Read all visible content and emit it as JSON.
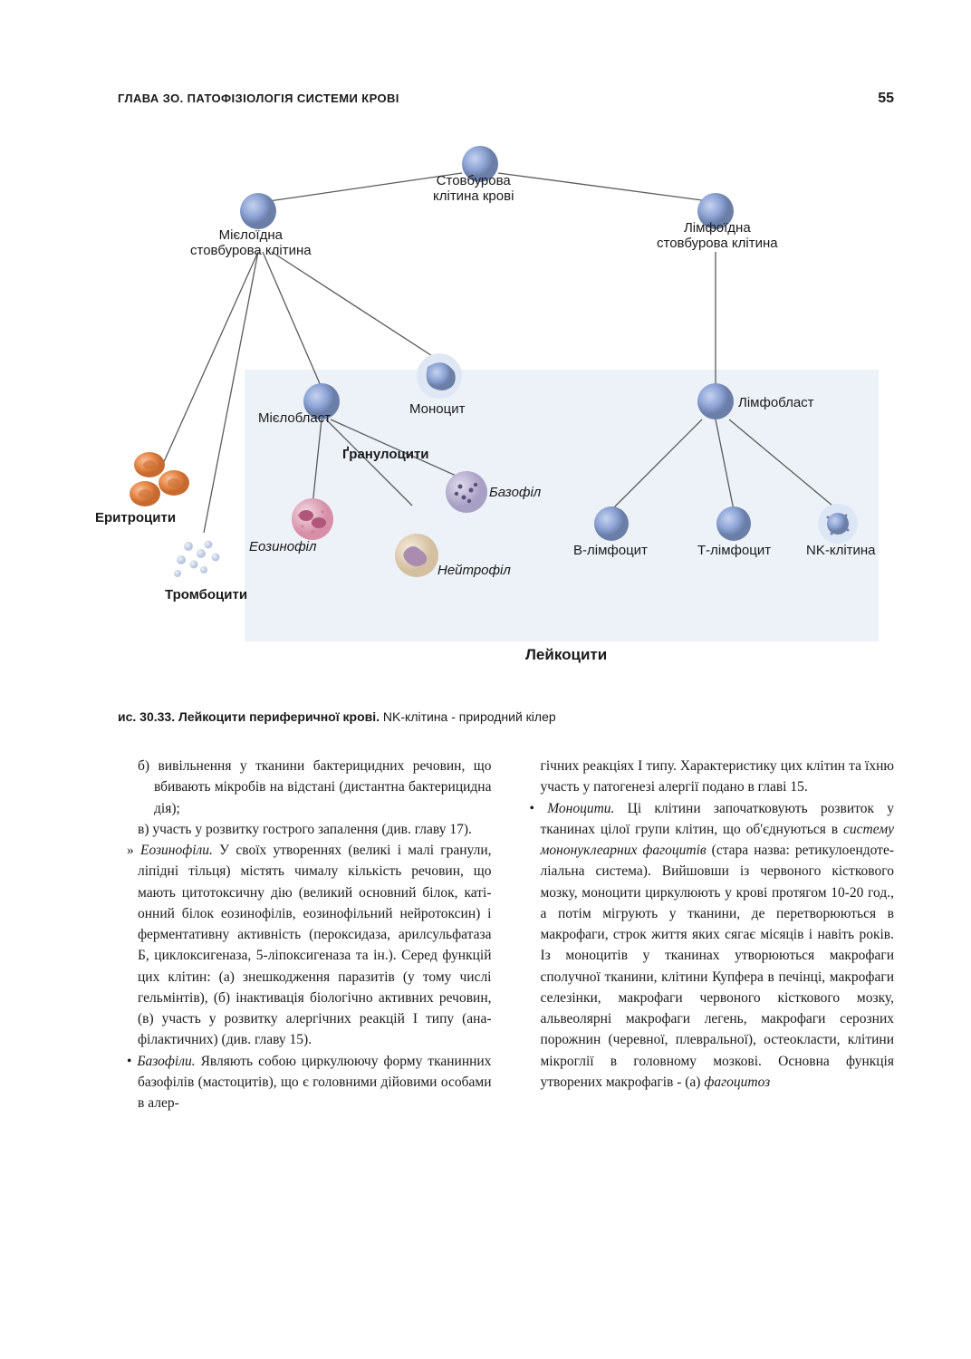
{
  "header": {
    "chapter_title": "ГЛАВА ЗО. ПАТОФІЗІОЛОГІЯ СИСТЕМИ КРОВІ",
    "page_number": "55"
  },
  "diagram": {
    "labels": {
      "stem_cell": "Стовбурова\nклітина крові",
      "myeloid_stem": "Мієлоїдна\nстовбурова клітина",
      "lymphoid_stem": "Лімфоїдна\nстовбурова клітина",
      "monocyte": "Моноцит",
      "myeloblast": "Мієлобласт",
      "lymphoblast": "Лімфобласт",
      "granulocytes": "Ґранулоцити",
      "basophil": "Базофіл",
      "eosinophil": "Еозинофіл",
      "neutrophil": "Нейтрофіл",
      "erythrocytes": "Еритроцити",
      "thrombocytes": "Тромбоцити",
      "b_lymphocyte": "В-лімфоцит",
      "t_lymphocyte": "Т-лімфоцит",
      "nk_cell": "NK-клітина",
      "leukocytes": "Лейкоцити"
    },
    "colors": {
      "cell_blue": "#8fa5d6",
      "cell_blue_dark": "#6b7ea8",
      "cell_orange": "#e88a4d",
      "cell_orange_dark": "#c66a30",
      "cell_platelet": "#c9d4e8",
      "cell_eos": "#e6b4c4",
      "cell_neut": "#e8d8c4",
      "cell_baso": "#c4c0d8",
      "line": "#5a5a5a",
      "bg_box": "#eef2f8",
      "text": "#1a1a1a"
    }
  },
  "caption": {
    "fig_num": "ис. 30.33. ",
    "fig_title": "Лейкоцити периферичної крові. ",
    "fig_note": "NK-клітина - природний кілер"
  },
  "body": {
    "left": [
      {
        "cls": "indent-b",
        "html": "б) вивільнення у тканини бактерицидних речовин, що вбивають мікробів на від­стані (дистантна бактерицидна дія);"
      },
      {
        "cls": "indent-c",
        "html": "в) участь у розвитку гострого запалення (див. главу 17)."
      },
      {
        "cls": "bullet-dquo",
        "html": "» <em>Еозинофіли.</em> У своїх утвореннях (великі і малі гранули, ліпідні тільця) містять чи­малу кількість речовин, що мають цитоток­сичну дію (великий основний білок, каті­онний білок еозинофілів, еозинофільний нейротоксин) і ферментативну активність (пероксидаза, арилсульфатаза Б, циклокси­геназа, 5-ліпоксигеназа та ін.). Серед функ­цій цих клітин: (а) знешкодження паразитів (у тому числі гельмінтів), (б) інактивація біологічно активних речовин, (в) участь у розвитку алергічних реакцій I типу (ана­філактичних) (див. главу 15)."
      },
      {
        "cls": "bullet",
        "html": "• <em>Базофіли.</em> Являють собою циркулюючу форму тканинних базофілів (мастоцитів), що є головними дійовими особами в алер-"
      }
    ],
    "right": [
      {
        "cls": "para",
        "html": "гічних реакціях I типу. Характеристику цих клітин та їхню участь у патогенезі алергії подано в главі 15."
      },
      {
        "cls": "bullet",
        "html": "• <em>Моноцити.</em> Ці клітини започатковують роз­виток у тканинах цілої групи клітин, що об'єднуються в <em>систему мононуклеарних фагоцитів</em> (стара назва: ретикулоендоте­ліальна система). Вийшовши із червоно­го кісткового мозку, моноцити циркулю­ють у крові протягом 10-20 год., а потім мігрують у тканини, де перетворюються в макрофаги, строк життя яких сягає міся­ців і навіть років. Із моноцитів у тканинах утворюються макрофаги сполучної ткани­ни, клітини Купфера в печінці, макрофаги селезінки, макрофаги червоного кістково­го мозку, альвеолярні макрофаги легень, макрофаги серозних порожнин (черевної, плевральної), остеокласти, клітини мікро­глії в головному мозкові. Основна функ­ція утворених макрофагів - (а) <em>фагоцитоз</em>"
      }
    ]
  }
}
